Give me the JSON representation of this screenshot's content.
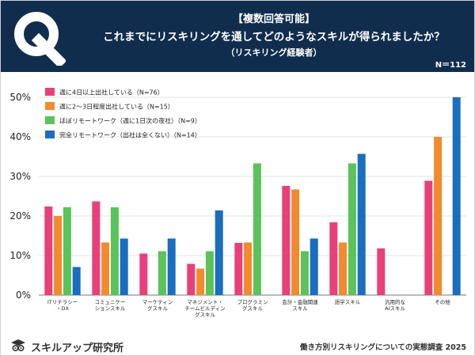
{
  "header": {
    "tag": "【複数回答可能】",
    "question": "これまでにリスキリングを通してどのようなスキルが得られましたか？",
    "sub": "（リスキリング経験者）",
    "n_total": "N＝112",
    "logo_letter": "Q"
  },
  "footer": {
    "brand": "スキルアップ研究所",
    "source": "働き方別リスキリングについての実態調査 2025",
    "brand_icon": "graduation-cap-owl-icon"
  },
  "chart_data": {
    "type": "bar",
    "ylim": [
      0,
      50
    ],
    "yticks": [
      "0%",
      "10%",
      "20%",
      "30%",
      "40%",
      "50%"
    ],
    "grid": true,
    "legend_position": "top-left",
    "categories": [
      [
        "ITリテラシー",
        "・DX"
      ],
      [
        "コミュニケー",
        "ションスキル"
      ],
      [
        "マーケティン",
        "グスキル"
      ],
      [
        "マネジメント・",
        "チームビルディン",
        "グスキル"
      ],
      [
        "プログラミン",
        "グスキル"
      ],
      [
        "会計・金融関連",
        "スキル"
      ],
      [
        "語学スキル"
      ],
      [
        "汎用的な",
        "AIスキル"
      ],
      [
        "その他"
      ]
    ],
    "series": [
      {
        "name": "週に4日以上出社している（N=76）",
        "color": "#e8407a",
        "values": [
          22.4,
          23.7,
          10.5,
          7.9,
          13.2,
          27.6,
          18.4,
          11.8,
          28.9
        ]
      },
      {
        "name": "週に2～3日程度出社している（N=15）",
        "color": "#f28a2e",
        "values": [
          20.0,
          13.3,
          0,
          6.7,
          13.3,
          26.7,
          13.3,
          0,
          40.0
        ]
      },
      {
        "name": "ほぼリモートワーク（週に1日次の夜社）（N=9）",
        "color": "#5cc25a",
        "values": [
          22.2,
          22.2,
          11.1,
          11.1,
          33.3,
          11.1,
          33.3,
          0,
          0
        ]
      },
      {
        "name": "完全リモートワーク（出社は全くない）（N=14）",
        "color": "#1a6dbf",
        "values": [
          7.1,
          14.3,
          14.3,
          21.4,
          0,
          14.3,
          35.7,
          0,
          50.0
        ]
      }
    ]
  }
}
